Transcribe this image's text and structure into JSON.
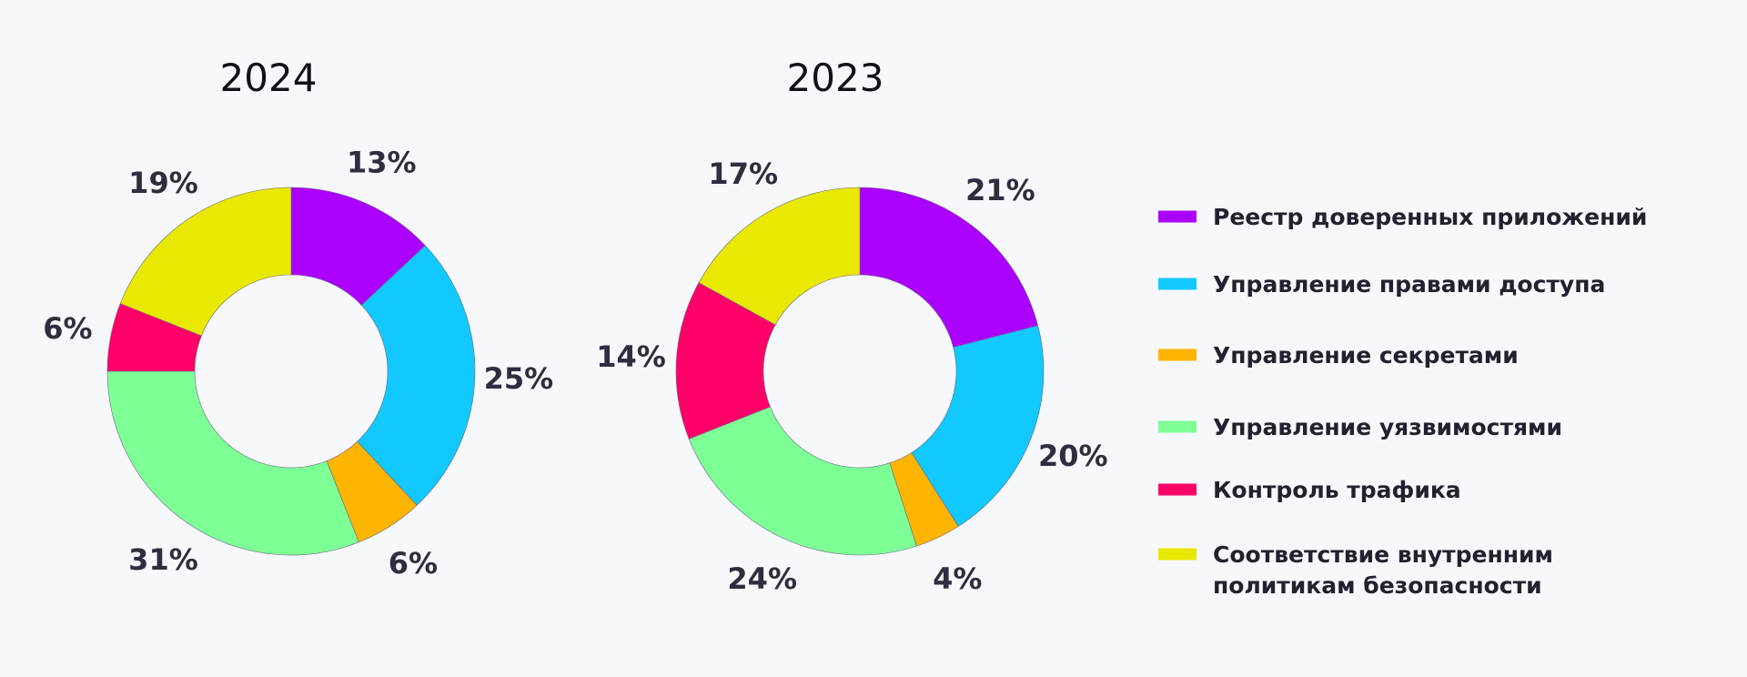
{
  "chart_data": [
    {
      "type": "pie",
      "variant": "donut",
      "title": "2024",
      "categories": [
        "Реестр доверенных приложений",
        "Управление правами доступа",
        "Управление секретами",
        "Управление уязвимостями",
        "Контроль трафика",
        "Соответствие внутренним политикам безопасности"
      ],
      "values": [
        13,
        25,
        6,
        31,
        6,
        19
      ],
      "labels": [
        "13%",
        "25%",
        "6%",
        "31%",
        "6%",
        "19%"
      ]
    },
    {
      "type": "pie",
      "variant": "donut",
      "title": "2023",
      "categories": [
        "Реестр доверенных приложений",
        "Управление правами доступа",
        "Управление секретами",
        "Управление уязвимостями",
        "Контроль трафика",
        "Соответствие внутренним политикам безопасности"
      ],
      "values": [
        21,
        20,
        4,
        24,
        14,
        17
      ],
      "labels": [
        "21%",
        "20%",
        "4%",
        "24%",
        "14%",
        "17%"
      ]
    }
  ],
  "legend": {
    "placement": "right",
    "items": [
      {
        "lines": [
          "Реестр доверенных приложений"
        ],
        "color": "#ab00ff"
      },
      {
        "lines": [
          "Управление правами доступа"
        ],
        "color": "#11c8ff"
      },
      {
        "lines": [
          "Управление секретами"
        ],
        "color": "#ffb400"
      },
      {
        "lines": [
          "Управление уязвимостями"
        ],
        "color": "#7dff95"
      },
      {
        "lines": [
          "Контроль трафика"
        ],
        "color": "#ff0068"
      },
      {
        "lines": [
          "Соответствие внутренним",
          "политикам безопасности"
        ],
        "color": "#e9e800"
      }
    ]
  }
}
